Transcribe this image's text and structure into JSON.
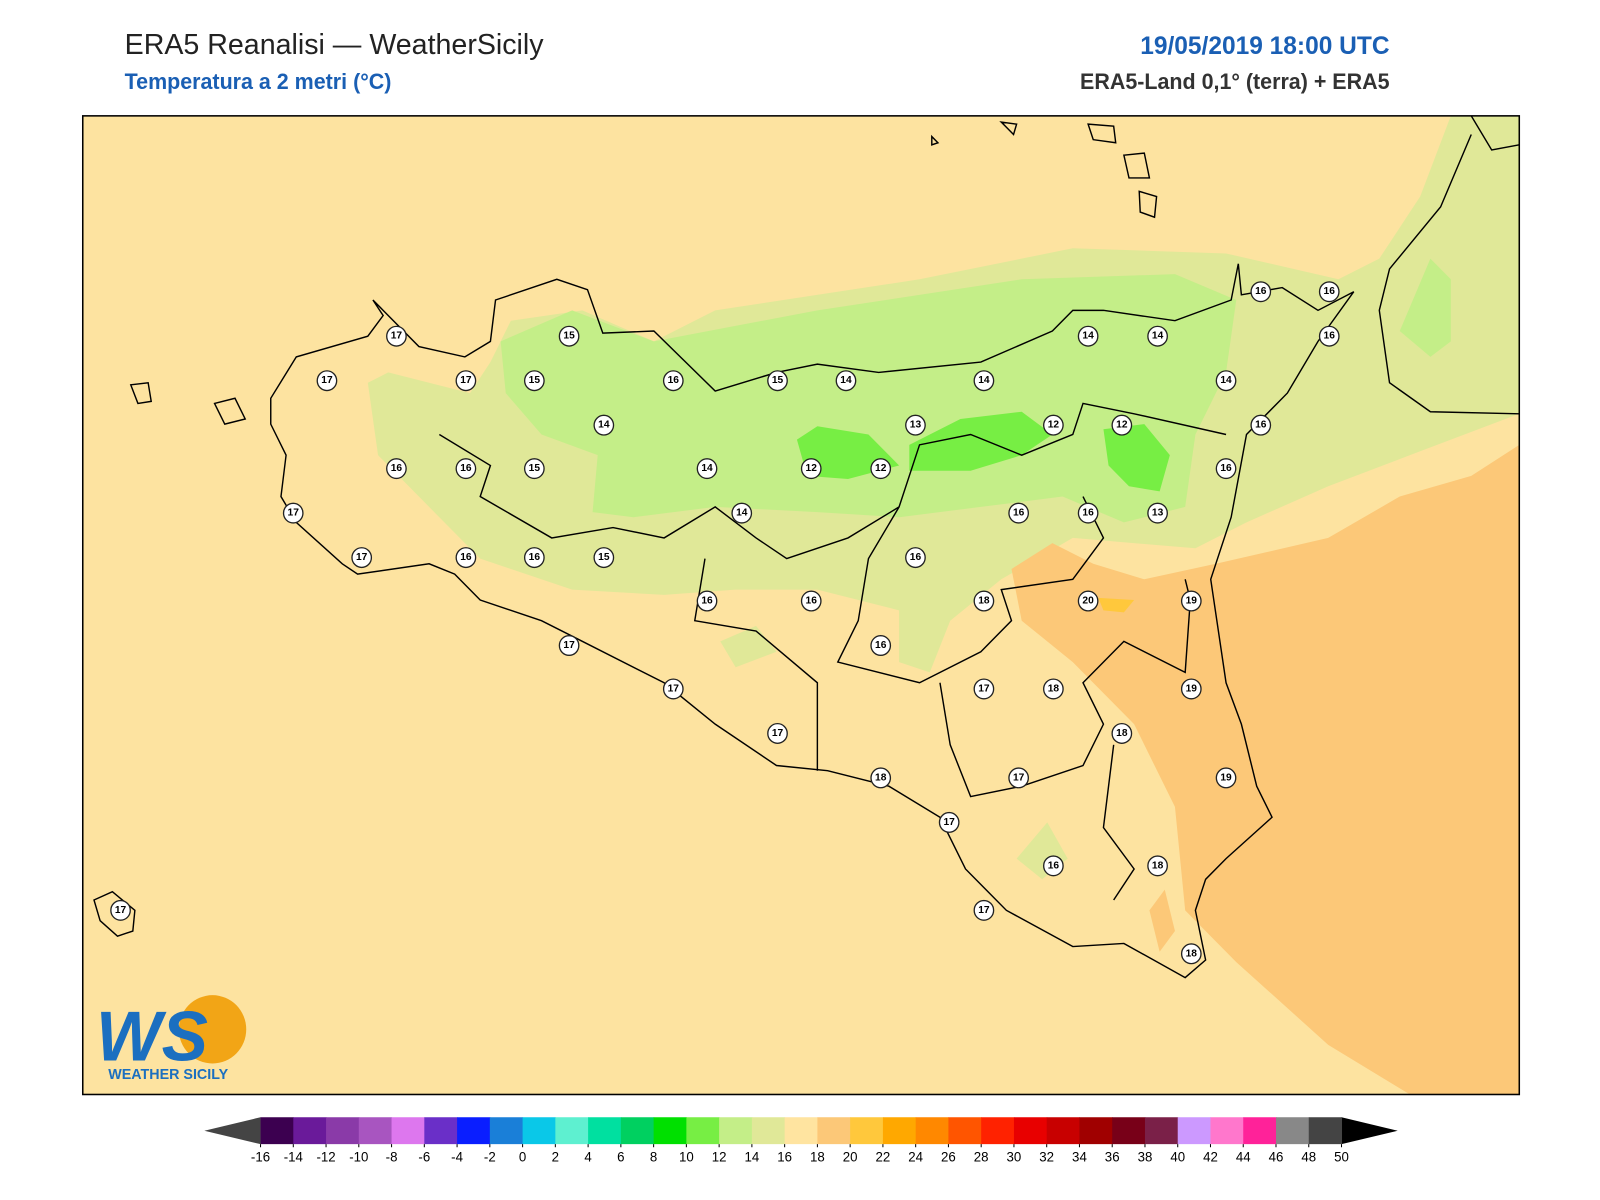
{
  "header": {
    "title": "ERA5 Reanalisi — WeatherSicily",
    "subtitle": "Temperatura a 2 metri (°C)",
    "datetime": "19/05/2019 18:00 UTC",
    "source": "ERA5-Land 0,1° (terra) + ERA5"
  },
  "logo": {
    "letters": "WS",
    "text": "WEATHER SICILY"
  },
  "stations": [
    17,
    17,
    17,
    15,
    15,
    14,
    16,
    15,
    14,
    13,
    14,
    12,
    14,
    12,
    14,
    14,
    16,
    16,
    16,
    16,
    16,
    13,
    16,
    16,
    16,
    12,
    12,
    14,
    14,
    15,
    16,
    16,
    17,
    17,
    16,
    16,
    15,
    16,
    16,
    18,
    20,
    19,
    17,
    16,
    17,
    17,
    18,
    19,
    17,
    18,
    18,
    17,
    19,
    17,
    16,
    18,
    17,
    17,
    18
  ],
  "colorbar": {
    "ticks": [
      -16,
      -14,
      -12,
      -10,
      -8,
      -6,
      -4,
      -2,
      0,
      2,
      4,
      6,
      8,
      10,
      12,
      14,
      16,
      18,
      20,
      22,
      24,
      26,
      28,
      30,
      32,
      34,
      36,
      38,
      40,
      42,
      44,
      46,
      48,
      50
    ],
    "colors": [
      "#3c0050",
      "#6a1a9a",
      "#8a3aa8",
      "#a855c0",
      "#dd77ee",
      "#6a2fc8",
      "#0a1eff",
      "#1a7fd8",
      "#0ac8e8",
      "#5ef0d0",
      "#00e0a0",
      "#00d060",
      "#00e000",
      "#77ee44",
      "#c4ee88",
      "#e0e898",
      "#ffe4a0",
      "#fcc878",
      "#ffc83c",
      "#ffa800",
      "#ff8800",
      "#ff5500",
      "#ff2200",
      "#e80000",
      "#c80000",
      "#a00000",
      "#780018",
      "#7a2048",
      "#cc99ff",
      "#ff77cc",
      "#ff2299",
      "#888888",
      "#444444"
    ],
    "under_color": "#444444",
    "over_color": "#000000"
  }
}
